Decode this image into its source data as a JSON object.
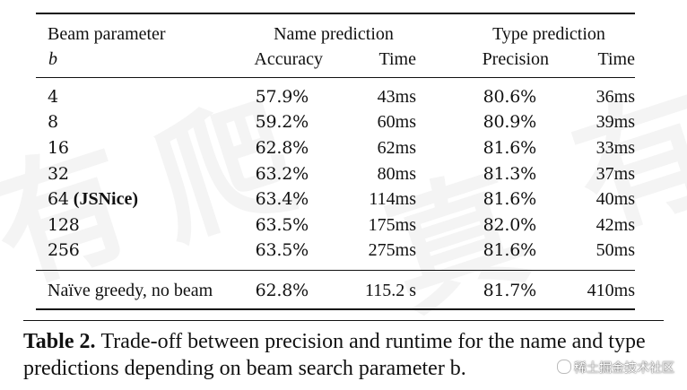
{
  "table": {
    "header": {
      "beam_label": "Beam parameter",
      "beam_symbol": "b",
      "name_group": "Name prediction",
      "type_group": "Type prediction",
      "name_accuracy": "Accuracy",
      "name_time": "Time",
      "type_precision": "Precision",
      "type_time": "Time"
    },
    "rows": [
      {
        "beam": "4",
        "suffix": "",
        "name_acc": "57.9%",
        "name_time": "43ms",
        "type_prec": "80.6%",
        "type_time": "36ms"
      },
      {
        "beam": "8",
        "suffix": "",
        "name_acc": "59.2%",
        "name_time": "60ms",
        "type_prec": "80.9%",
        "type_time": "39ms"
      },
      {
        "beam": "16",
        "suffix": "",
        "name_acc": "62.8%",
        "name_time": "62ms",
        "type_prec": "81.6%",
        "type_time": "33ms"
      },
      {
        "beam": "32",
        "suffix": "",
        "name_acc": "63.2%",
        "name_time": "80ms",
        "type_prec": "81.3%",
        "type_time": "37ms"
      },
      {
        "beam": "64",
        "suffix": "(JSNice)",
        "name_acc": "63.4%",
        "name_time": "114ms",
        "type_prec": "81.6%",
        "type_time": "40ms"
      },
      {
        "beam": "128",
        "suffix": "",
        "name_acc": "63.5%",
        "name_time": "175ms",
        "type_prec": "82.0%",
        "type_time": "42ms"
      },
      {
        "beam": "256",
        "suffix": "",
        "name_acc": "63.5%",
        "name_time": "275ms",
        "type_prec": "81.6%",
        "type_time": "50ms"
      }
    ],
    "final_row": {
      "beam": "Naïve greedy, no beam",
      "name_acc": "62.8%",
      "name_time": "115.2 s",
      "type_prec": "81.7%",
      "type_time": "410ms"
    }
  },
  "caption": {
    "label": "Table 2.",
    "text": "Trade-off between precision and runtime for the name and type predictions depending on beam search parameter b."
  },
  "watermark": {
    "badge_text": "稀土掘金技术社区",
    "glyphs": [
      "有",
      "爬",
      "真",
      "有"
    ]
  }
}
